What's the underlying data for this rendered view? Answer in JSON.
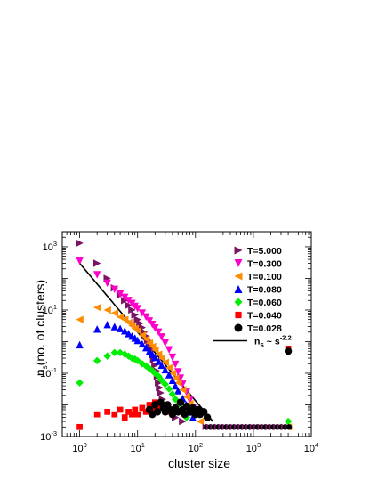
{
  "chart_data": {
    "type": "scatter",
    "xlabel": "cluster size",
    "ylabel_main": "n",
    "ylabel_sub": "s",
    "ylabel_rest": "(no. of clusters)",
    "xscale": "log",
    "yscale": "log",
    "xlim": [
      0.5,
      10000
    ],
    "ylim": [
      0.001,
      3000
    ],
    "x_ticks": [
      {
        "value": 1,
        "base": "10",
        "exp": "0"
      },
      {
        "value": 10,
        "base": "10",
        "exp": "1"
      },
      {
        "value": 100,
        "base": "10",
        "exp": "2"
      },
      {
        "value": 1000,
        "base": "10",
        "exp": "3"
      },
      {
        "value": 10000,
        "base": "10",
        "exp": "4"
      }
    ],
    "y_ticks": [
      {
        "value": 0.001,
        "base": "10",
        "exp": "-3"
      },
      {
        "value": 0.1,
        "base": "10",
        "exp": "-1"
      },
      {
        "value": 10,
        "base": "10",
        "exp": "1"
      },
      {
        "value": 1000,
        "base": "10",
        "exp": "3"
      }
    ],
    "legend_position": "top-right",
    "series": [
      {
        "name": "T=5.000",
        "marker": "tri-right",
        "color": "#7a1463",
        "points": [
          [
            1,
            1300
          ],
          [
            2,
            300
          ],
          [
            3,
            100
          ],
          [
            4,
            50
          ],
          [
            5,
            30
          ],
          [
            6,
            20
          ],
          [
            7,
            14
          ],
          [
            8,
            10
          ],
          [
            9,
            7
          ],
          [
            10,
            5
          ],
          [
            11,
            3.8
          ],
          [
            12,
            2.8
          ],
          [
            13,
            2
          ],
          [
            14,
            1.5
          ],
          [
            15,
            1.1
          ],
          [
            16,
            0.8
          ],
          [
            17,
            0.55
          ],
          [
            18,
            0.38
          ],
          [
            19,
            0.27
          ],
          [
            20,
            0.18
          ],
          [
            21,
            0.12
          ],
          [
            22,
            0.08
          ],
          [
            23,
            0.05
          ],
          [
            24,
            0.035
          ],
          [
            25,
            0.024
          ],
          [
            27,
            0.015
          ],
          [
            30,
            0.009
          ],
          [
            35,
            0.006
          ],
          [
            45,
            0.004
          ],
          [
            60,
            0.003
          ]
        ]
      },
      {
        "name": "T=0.300",
        "marker": "tri-down",
        "color": "#ff00cc",
        "points": [
          [
            1,
            350
          ],
          [
            2,
            130
          ],
          [
            3,
            70
          ],
          [
            4,
            45
          ],
          [
            5,
            32
          ],
          [
            6,
            25
          ],
          [
            7,
            20
          ],
          [
            8,
            16
          ],
          [
            9,
            13
          ],
          [
            10,
            11
          ],
          [
            12,
            8
          ],
          [
            14,
            6
          ],
          [
            16,
            4.5
          ],
          [
            18,
            3.5
          ],
          [
            20,
            2.7
          ],
          [
            23,
            2
          ],
          [
            26,
            1.4
          ],
          [
            30,
            0.9
          ],
          [
            35,
            0.55
          ],
          [
            40,
            0.32
          ],
          [
            45,
            0.19
          ],
          [
            50,
            0.11
          ],
          [
            55,
            0.07
          ],
          [
            60,
            0.045
          ],
          [
            70,
            0.025
          ],
          [
            80,
            0.014
          ],
          [
            90,
            0.008
          ],
          [
            100,
            0.005
          ]
        ]
      },
      {
        "name": "T=0.100",
        "marker": "tri-left",
        "color": "#ff8c00",
        "points": [
          [
            1,
            5
          ],
          [
            2,
            12
          ],
          [
            3,
            10
          ],
          [
            4,
            8
          ],
          [
            5,
            6
          ],
          [
            6,
            5
          ],
          [
            7,
            4
          ],
          [
            8,
            3.2
          ],
          [
            9,
            2.6
          ],
          [
            10,
            2.2
          ],
          [
            12,
            1.6
          ],
          [
            14,
            1.2
          ],
          [
            16,
            0.9
          ],
          [
            18,
            0.7
          ],
          [
            20,
            0.55
          ],
          [
            23,
            0.4
          ],
          [
            26,
            0.3
          ],
          [
            30,
            0.22
          ],
          [
            35,
            0.15
          ],
          [
            40,
            0.1
          ],
          [
            45,
            0.07
          ],
          [
            50,
            0.05
          ],
          [
            60,
            0.03
          ],
          [
            70,
            0.018
          ],
          [
            80,
            0.011
          ],
          [
            90,
            0.007
          ],
          [
            100,
            0.005
          ],
          [
            120,
            0.003
          ],
          [
            4000,
            0.002
          ]
        ]
      },
      {
        "name": "T=0.080",
        "marker": "tri-up",
        "color": "#0000ff",
        "points": [
          [
            1,
            0.8
          ],
          [
            2,
            2.5
          ],
          [
            3,
            3.5
          ],
          [
            4,
            3
          ],
          [
            5,
            2.6
          ],
          [
            6,
            2.2
          ],
          [
            7,
            1.8
          ],
          [
            8,
            1.5
          ],
          [
            9,
            1.3
          ],
          [
            10,
            1.1
          ],
          [
            12,
            0.85
          ],
          [
            14,
            0.65
          ],
          [
            16,
            0.5
          ],
          [
            18,
            0.4
          ],
          [
            20,
            0.32
          ],
          [
            23,
            0.24
          ],
          [
            26,
            0.18
          ],
          [
            30,
            0.13
          ],
          [
            35,
            0.09
          ],
          [
            40,
            0.06
          ],
          [
            45,
            0.04
          ],
          [
            50,
            0.028
          ],
          [
            60,
            0.016
          ],
          [
            70,
            0.01
          ],
          [
            80,
            0.006
          ],
          [
            90,
            0.004
          ]
        ]
      },
      {
        "name": "T=0.060",
        "marker": "diamond",
        "color": "#00ee00",
        "points": [
          [
            1,
            0.05
          ],
          [
            2,
            0.25
          ],
          [
            3,
            0.35
          ],
          [
            4,
            0.45
          ],
          [
            5,
            0.45
          ],
          [
            6,
            0.4
          ],
          [
            7,
            0.35
          ],
          [
            8,
            0.3
          ],
          [
            9,
            0.28
          ],
          [
            10,
            0.25
          ],
          [
            12,
            0.2
          ],
          [
            14,
            0.17
          ],
          [
            16,
            0.14
          ],
          [
            18,
            0.12
          ],
          [
            20,
            0.1
          ],
          [
            23,
            0.08
          ],
          [
            26,
            0.06
          ],
          [
            30,
            0.045
          ],
          [
            35,
            0.032
          ],
          [
            40,
            0.022
          ],
          [
            45,
            0.015
          ],
          [
            50,
            0.01
          ],
          [
            60,
            0.006
          ],
          [
            70,
            0.004
          ],
          [
            4000,
            0.003
          ]
        ]
      },
      {
        "name": "T=0.040",
        "marker": "square",
        "color": "#ff0000",
        "points": [
          [
            1,
            0.002
          ],
          [
            2,
            0.005
          ],
          [
            3,
            0.006
          ],
          [
            4,
            0.005
          ],
          [
            5,
            0.007
          ],
          [
            6,
            0.004
          ],
          [
            7,
            0.006
          ],
          [
            8,
            0.005
          ],
          [
            9,
            0.007
          ],
          [
            10,
            0.005
          ],
          [
            12,
            0.008
          ],
          [
            14,
            0.006
          ],
          [
            16,
            0.01
          ],
          [
            18,
            0.007
          ],
          [
            20,
            0.012
          ],
          [
            23,
            0.009
          ],
          [
            26,
            0.01
          ],
          [
            30,
            0.008
          ],
          [
            35,
            0.006
          ],
          [
            40,
            0.005
          ],
          [
            4000,
            0.6
          ]
        ]
      },
      {
        "name": "T=0.028",
        "marker": "circle",
        "color": "#000000",
        "points": [
          [
            16,
            0.007
          ],
          [
            18,
            0.005
          ],
          [
            20,
            0.01
          ],
          [
            22,
            0.006
          ],
          [
            25,
            0.012
          ],
          [
            28,
            0.008
          ],
          [
            30,
            0.006
          ],
          [
            33,
            0.01
          ],
          [
            36,
            0.007
          ],
          [
            40,
            0.005
          ],
          [
            45,
            0.008
          ],
          [
            50,
            0.006
          ],
          [
            55,
            0.012
          ],
          [
            60,
            0.007
          ],
          [
            65,
            0.005
          ],
          [
            70,
            0.009
          ],
          [
            80,
            0.006
          ],
          [
            90,
            0.008
          ],
          [
            100,
            0.005
          ],
          [
            110,
            0.007
          ],
          [
            120,
            0.005
          ],
          [
            140,
            0.006
          ],
          [
            160,
            0.004
          ],
          [
            4000,
            0.5
          ]
        ]
      }
    ],
    "flat_tail": {
      "xmin": 150,
      "xmax": 4000,
      "y": 0.002,
      "count": 22
    },
    "fit_line": {
      "label_main": "n",
      "label_sub": "s",
      "label_mid": " ~ s",
      "label_exp": "-2.2",
      "x0": 1,
      "y0": 300,
      "x1": 200,
      "y1": 0.003
    }
  }
}
